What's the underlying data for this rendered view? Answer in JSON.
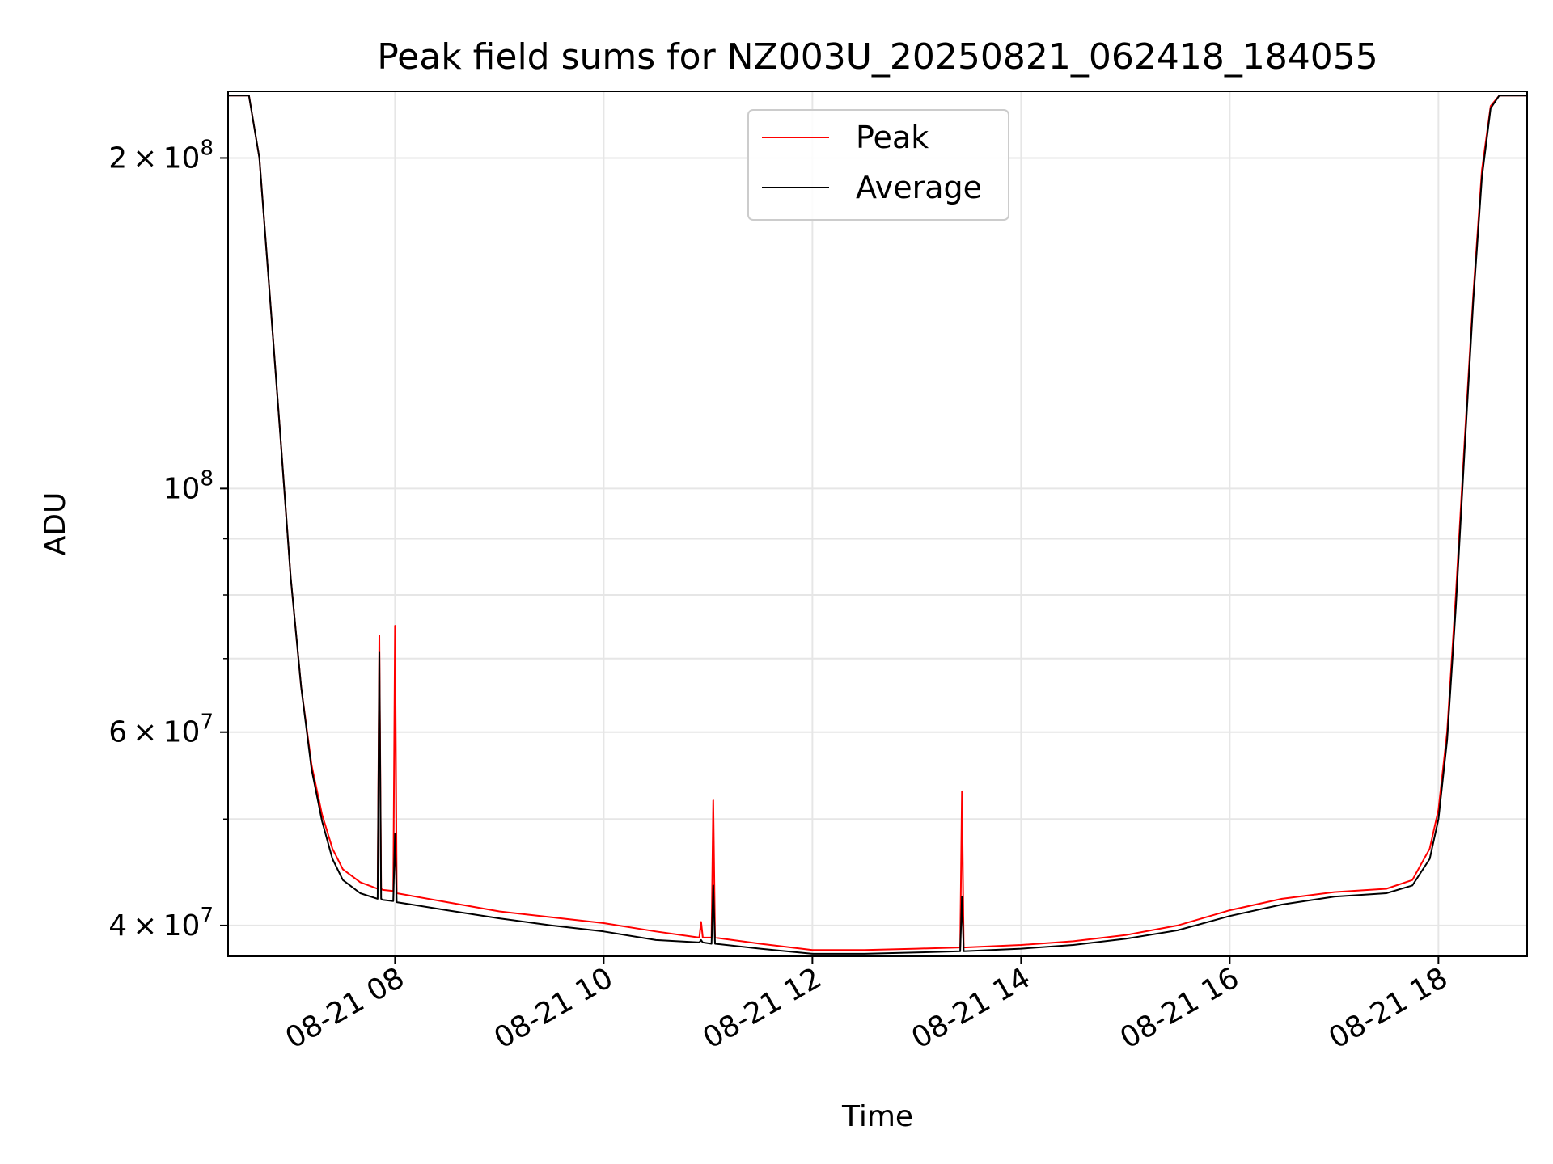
{
  "chart_data": {
    "type": "line",
    "title": "Peak field sums for NZ003U_20250821_062418_184055",
    "xlabel": "Time",
    "ylabel": "ADU",
    "y_scale": "log",
    "ylim": [
      37500000,
      230000000
    ],
    "xlim": [
      "2025-08-21T06:24",
      "2025-08-21T18:51"
    ],
    "grid": true,
    "legend": "upper center",
    "x_ticks": [
      {
        "t": "2025-08-21T08:00",
        "label": "08-21 08"
      },
      {
        "t": "2025-08-21T10:00",
        "label": "08-21 10"
      },
      {
        "t": "2025-08-21T12:00",
        "label": "08-21 12"
      },
      {
        "t": "2025-08-21T14:00",
        "label": "08-21 14"
      },
      {
        "t": "2025-08-21T16:00",
        "label": "08-21 16"
      },
      {
        "t": "2025-08-21T18:00",
        "label": "08-21 18"
      }
    ],
    "y_ticks": [
      {
        "v": 40000000,
        "base": "4",
        "exp": "7"
      },
      {
        "v": 60000000,
        "base": "6",
        "exp": "7"
      },
      {
        "v": 100000000,
        "base": "10",
        "exp": "8"
      },
      {
        "v": 200000000,
        "base": "2",
        "exp": "8"
      }
    ],
    "y_minor_ticks": [
      50000000,
      70000000,
      80000000,
      90000000
    ],
    "series": [
      {
        "name": "Peak",
        "color": "#ff0000",
        "x": [
          "2025-08-21T06:24",
          "2025-08-21T06:36",
          "2025-08-21T06:42",
          "2025-08-21T06:48",
          "2025-08-21T06:54",
          "2025-08-21T07:00",
          "2025-08-21T07:06",
          "2025-08-21T07:12",
          "2025-08-21T07:18",
          "2025-08-21T07:24",
          "2025-08-21T07:30",
          "2025-08-21T07:40",
          "2025-08-21T07:50",
          "2025-08-21T07:51",
          "2025-08-21T07:52",
          "2025-08-21T07:53",
          "2025-08-21T07:59",
          "2025-08-21T08:00",
          "2025-08-21T08:01",
          "2025-08-21T08:30",
          "2025-08-21T09:00",
          "2025-08-21T09:30",
          "2025-08-21T10:00",
          "2025-08-21T10:30",
          "2025-08-21T10:55",
          "2025-08-21T10:56",
          "2025-08-21T10:57",
          "2025-08-21T11:02",
          "2025-08-21T11:03",
          "2025-08-21T11:04",
          "2025-08-21T11:30",
          "2025-08-21T12:00",
          "2025-08-21T12:30",
          "2025-08-21T13:00",
          "2025-08-21T13:25",
          "2025-08-21T13:26",
          "2025-08-21T13:27",
          "2025-08-21T14:00",
          "2025-08-21T14:30",
          "2025-08-21T15:00",
          "2025-08-21T15:30",
          "2025-08-21T16:00",
          "2025-08-21T16:30",
          "2025-08-21T17:00",
          "2025-08-21T17:30",
          "2025-08-21T17:45",
          "2025-08-21T17:55",
          "2025-08-21T18:00",
          "2025-08-21T18:05",
          "2025-08-21T18:10",
          "2025-08-21T18:15",
          "2025-08-21T18:20",
          "2025-08-21T18:25",
          "2025-08-21T18:30",
          "2025-08-21T18:35",
          "2025-08-21T18:51"
        ],
        "y": [
          228000000,
          228000000,
          200000000,
          150000000,
          112000000,
          83000000,
          66000000,
          56000000,
          50500000,
          47000000,
          45000000,
          43800000,
          43200000,
          73500000,
          43200000,
          43100000,
          43000000,
          75000000,
          42800000,
          42000000,
          41200000,
          40700000,
          40200000,
          39500000,
          39000000,
          40300000,
          39000000,
          39000000,
          52000000,
          39000000,
          38500000,
          38000000,
          38000000,
          38100000,
          38200000,
          53000000,
          38200000,
          38400000,
          38700000,
          39200000,
          40000000,
          41300000,
          42300000,
          42900000,
          43200000,
          44000000,
          47000000,
          51000000,
          60000000,
          80000000,
          110000000,
          150000000,
          195000000,
          223000000,
          228000000,
          228000000
        ]
      },
      {
        "name": "Average",
        "color": "#000000",
        "x": [
          "2025-08-21T06:24",
          "2025-08-21T06:36",
          "2025-08-21T06:42",
          "2025-08-21T06:48",
          "2025-08-21T06:54",
          "2025-08-21T07:00",
          "2025-08-21T07:06",
          "2025-08-21T07:12",
          "2025-08-21T07:18",
          "2025-08-21T07:24",
          "2025-08-21T07:30",
          "2025-08-21T07:40",
          "2025-08-21T07:50",
          "2025-08-21T07:51",
          "2025-08-21T07:52",
          "2025-08-21T07:53",
          "2025-08-21T07:59",
          "2025-08-21T08:00",
          "2025-08-21T08:01",
          "2025-08-21T08:30",
          "2025-08-21T09:00",
          "2025-08-21T09:30",
          "2025-08-21T10:00",
          "2025-08-21T10:30",
          "2025-08-21T10:55",
          "2025-08-21T10:56",
          "2025-08-21T10:57",
          "2025-08-21T11:02",
          "2025-08-21T11:03",
          "2025-08-21T11:04",
          "2025-08-21T11:30",
          "2025-08-21T12:00",
          "2025-08-21T12:30",
          "2025-08-21T13:00",
          "2025-08-21T13:25",
          "2025-08-21T13:26",
          "2025-08-21T13:27",
          "2025-08-21T14:00",
          "2025-08-21T14:30",
          "2025-08-21T15:00",
          "2025-08-21T15:30",
          "2025-08-21T16:00",
          "2025-08-21T16:30",
          "2025-08-21T17:00",
          "2025-08-21T17:30",
          "2025-08-21T17:45",
          "2025-08-21T17:55",
          "2025-08-21T18:00",
          "2025-08-21T18:05",
          "2025-08-21T18:10",
          "2025-08-21T18:15",
          "2025-08-21T18:20",
          "2025-08-21T18:25",
          "2025-08-21T18:30",
          "2025-08-21T18:35",
          "2025-08-21T18:51"
        ],
        "y": [
          228000000,
          228000000,
          200000000,
          150000000,
          112000000,
          83000000,
          66000000,
          55500000,
          49800000,
          46000000,
          44000000,
          42800000,
          42300000,
          71000000,
          42300000,
          42200000,
          42100000,
          48500000,
          42000000,
          41300000,
          40600000,
          40000000,
          39500000,
          38800000,
          38600000,
          38800000,
          38600000,
          38500000,
          43500000,
          38500000,
          38100000,
          37700000,
          37700000,
          37800000,
          37900000,
          42500000,
          37900000,
          38100000,
          38400000,
          38900000,
          39600000,
          40800000,
          41800000,
          42500000,
          42800000,
          43500000,
          46000000,
          50000000,
          59000000,
          78000000,
          108000000,
          148000000,
          192000000,
          222000000,
          228000000,
          228000000
        ]
      }
    ]
  }
}
